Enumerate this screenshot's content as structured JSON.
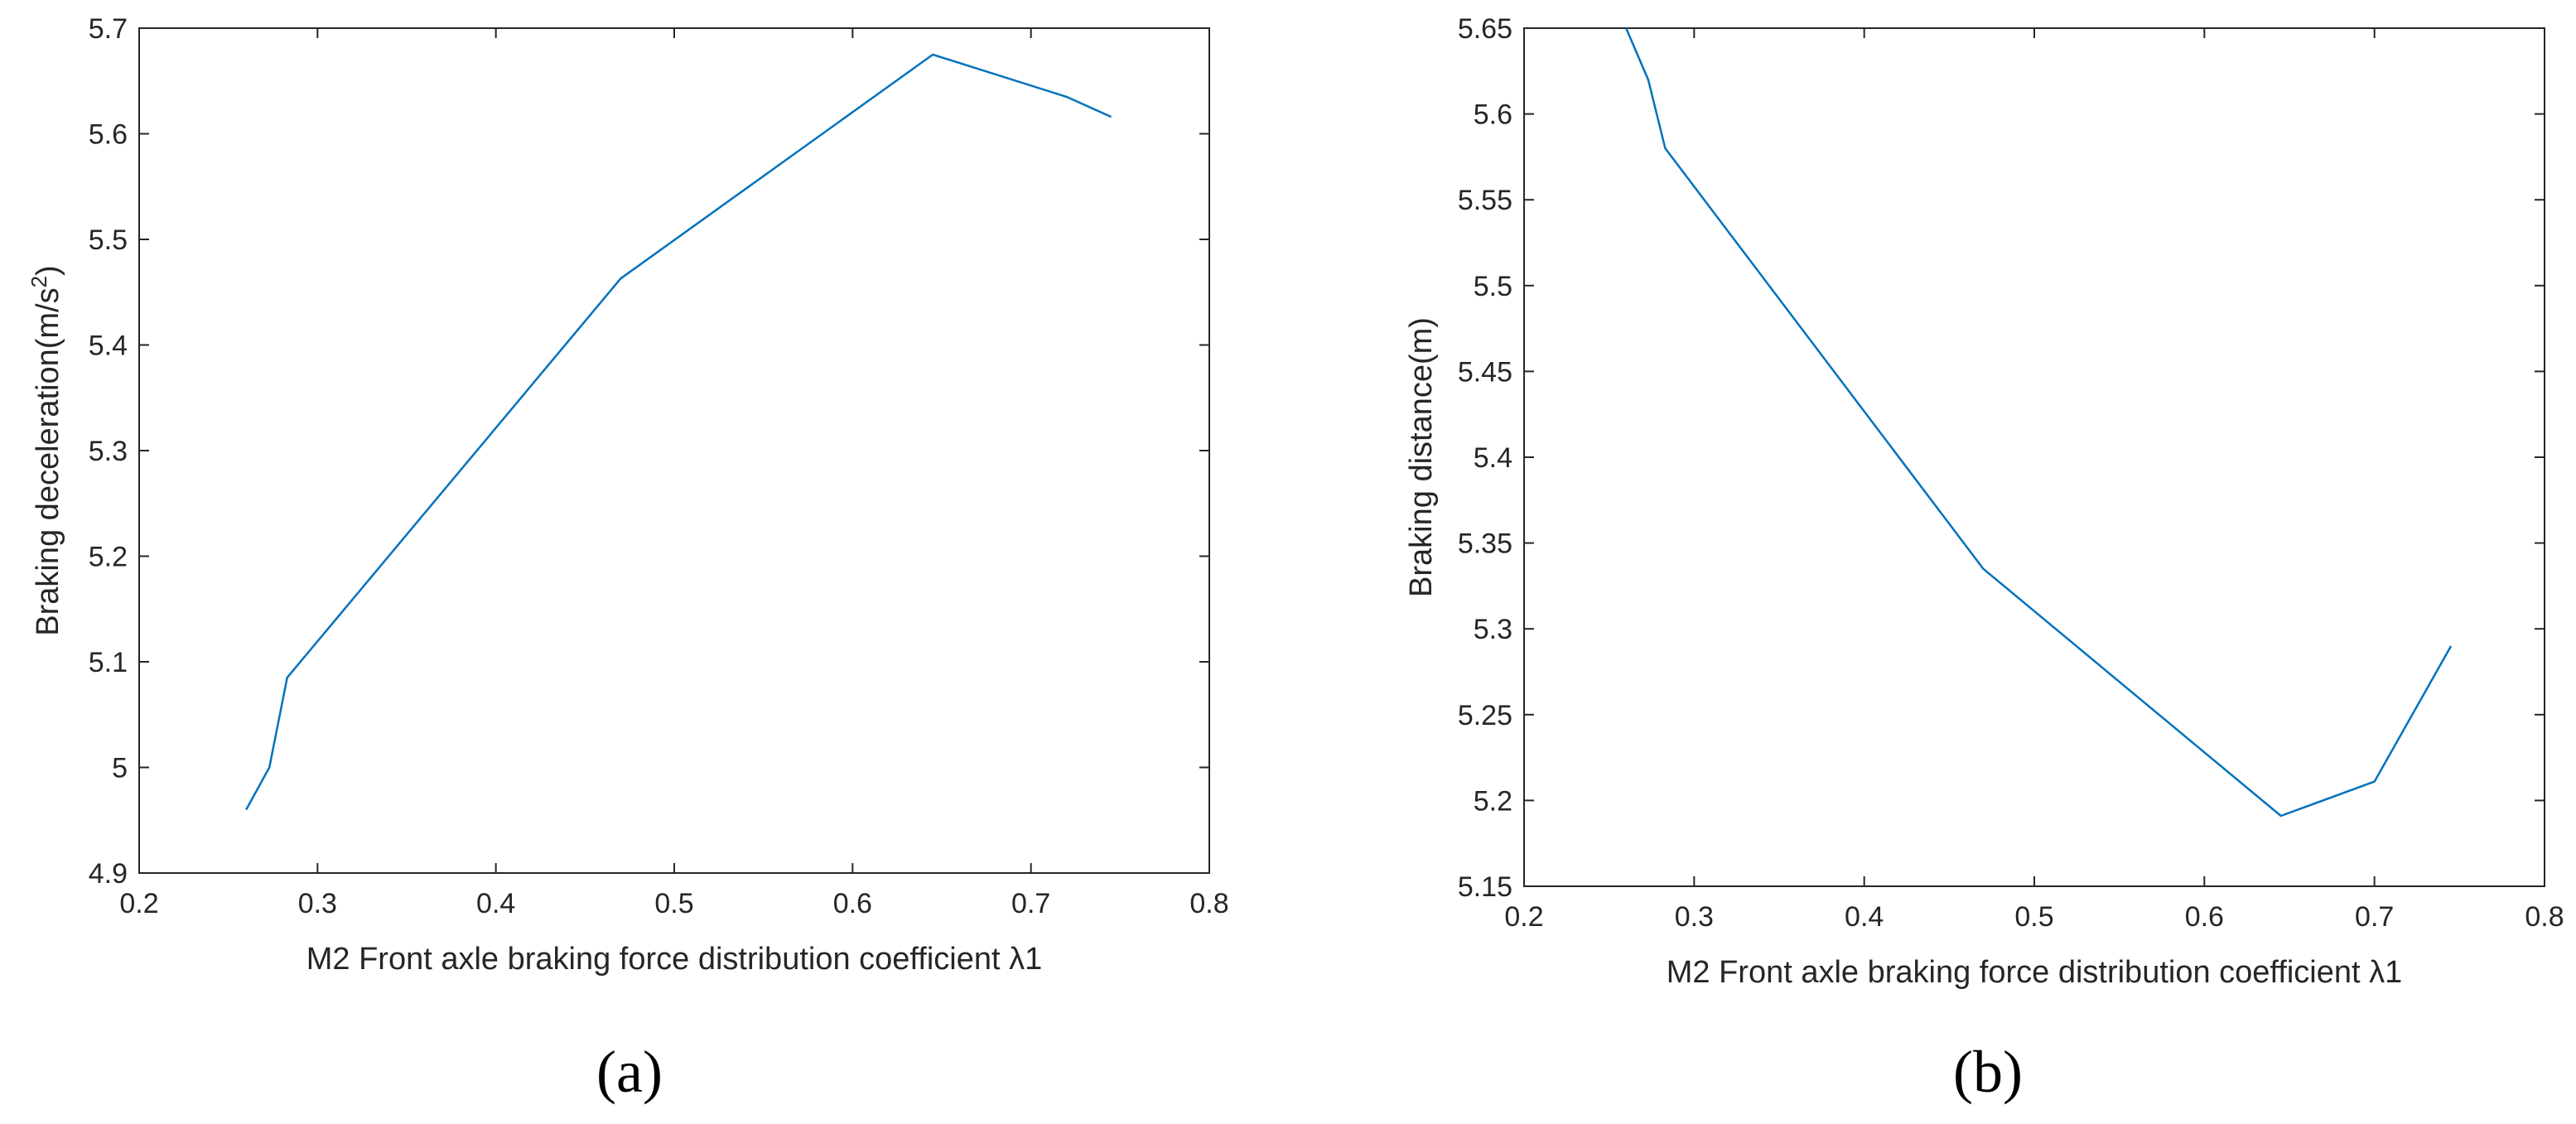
{
  "chart_data": [
    {
      "type": "line",
      "panel_label": "(a)",
      "xlabel": "M2 Front axle braking force distribution coefficient λ1",
      "ylabel": "Braking deceleration(m/s",
      "ylabel_sup": "2",
      "ylabel_close": ")",
      "xlim": [
        0.2,
        0.8
      ],
      "ylim": [
        4.9,
        5.7
      ],
      "xticks": [
        0.2,
        0.3,
        0.4,
        0.5,
        0.6,
        0.7,
        0.8
      ],
      "xtick_labels": [
        "0.2",
        "0.3",
        "0.4",
        "0.5",
        "0.6",
        "0.7",
        "0.8"
      ],
      "yticks": [
        4.9,
        5.0,
        5.1,
        5.2,
        5.3,
        5.4,
        5.5,
        5.6,
        5.7
      ],
      "ytick_labels": [
        "4.9",
        "5",
        "5.1",
        "5.2",
        "5.3",
        "5.4",
        "5.5",
        "5.6",
        "5.7"
      ],
      "grid": false,
      "series": [
        {
          "color": "#0072BD",
          "x": [
            0.26,
            0.273,
            0.283,
            0.47,
            0.645,
            0.72,
            0.745
          ],
          "y": [
            4.96,
            5.0,
            5.085,
            5.463,
            5.675,
            5.635,
            5.616
          ]
        }
      ]
    },
    {
      "type": "line",
      "panel_label": "(b)",
      "xlabel": "M2 Front axle braking force distribution coefficient λ1",
      "ylabel": "Braking distance(m)",
      "xlim": [
        0.2,
        0.8
      ],
      "ylim": [
        5.15,
        5.65
      ],
      "xticks": [
        0.2,
        0.3,
        0.4,
        0.5,
        0.6,
        0.7,
        0.8
      ],
      "xtick_labels": [
        "0.2",
        "0.3",
        "0.4",
        "0.5",
        "0.6",
        "0.7",
        "0.8"
      ],
      "yticks": [
        5.15,
        5.2,
        5.25,
        5.3,
        5.35,
        5.4,
        5.45,
        5.5,
        5.55,
        5.6,
        5.65
      ],
      "ytick_labels": [
        "5.15",
        "5.2",
        "5.25",
        "5.3",
        "5.35",
        "5.4",
        "5.45",
        "5.5",
        "5.55",
        "5.6",
        "5.65"
      ],
      "grid": false,
      "series": [
        {
          "color": "#0072BD",
          "x": [
            0.26,
            0.273,
            0.283,
            0.47,
            0.645,
            0.7,
            0.745
          ],
          "y": [
            5.65,
            5.62,
            5.58,
            5.335,
            5.191,
            5.211,
            5.29
          ]
        }
      ]
    }
  ]
}
